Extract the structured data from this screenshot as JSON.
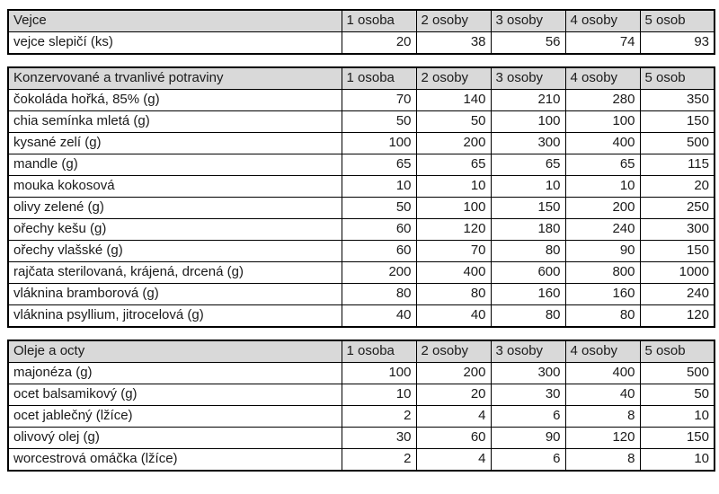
{
  "colors": {
    "page_bg": "#ffffff",
    "header_bg": "#d9d9d9",
    "border": "#000000",
    "text": "#1a1a1a"
  },
  "columns": [
    "1 osoba",
    "2 osoby",
    "3 osoby",
    "4 osoby",
    "5 osob"
  ],
  "sections": [
    {
      "title": "Vejce",
      "rows": [
        {
          "label": "vejce slepičí (ks)",
          "values": [
            20,
            38,
            56,
            74,
            93
          ]
        }
      ]
    },
    {
      "title": "Konzervované a trvanlivé potraviny",
      "rows": [
        {
          "label": "čokoláda hořká, 85% (g)",
          "values": [
            70,
            140,
            210,
            280,
            350
          ]
        },
        {
          "label": "chia semínka mletá (g)",
          "values": [
            50,
            50,
            100,
            100,
            150
          ]
        },
        {
          "label": "kysané zelí (g)",
          "values": [
            100,
            200,
            300,
            400,
            500
          ]
        },
        {
          "label": "mandle (g)",
          "values": [
            65,
            65,
            65,
            65,
            115
          ]
        },
        {
          "label": "mouka kokosová",
          "values": [
            10,
            10,
            10,
            10,
            20
          ]
        },
        {
          "label": "olivy zelené (g)",
          "values": [
            50,
            100,
            150,
            200,
            250
          ]
        },
        {
          "label": "ořechy kešu (g)",
          "values": [
            60,
            120,
            180,
            240,
            300
          ]
        },
        {
          "label": "ořechy vlašské (g)",
          "values": [
            60,
            70,
            80,
            90,
            150
          ]
        },
        {
          "label": "rajčata sterilovaná, krájená, drcená (g)",
          "values": [
            200,
            400,
            600,
            800,
            1000
          ]
        },
        {
          "label": "vláknina bramborová (g)",
          "values": [
            80,
            80,
            160,
            160,
            240
          ]
        },
        {
          "label": "vláknina psyllium, jitrocelová (g)",
          "values": [
            40,
            40,
            80,
            80,
            120
          ]
        }
      ]
    },
    {
      "title": "Oleje a octy",
      "rows": [
        {
          "label": "majonéza (g)",
          "values": [
            100,
            200,
            300,
            400,
            500
          ]
        },
        {
          "label": "ocet balsamikový (g)",
          "values": [
            10,
            20,
            30,
            40,
            50
          ]
        },
        {
          "label": "ocet jablečný (lžíce)",
          "values": [
            2,
            4,
            6,
            8,
            10
          ]
        },
        {
          "label": "olivový olej (g)",
          "values": [
            30,
            60,
            90,
            120,
            150
          ]
        },
        {
          "label": "worcestrová omáčka (lžíce)",
          "values": [
            2,
            4,
            6,
            8,
            10
          ]
        }
      ]
    }
  ]
}
